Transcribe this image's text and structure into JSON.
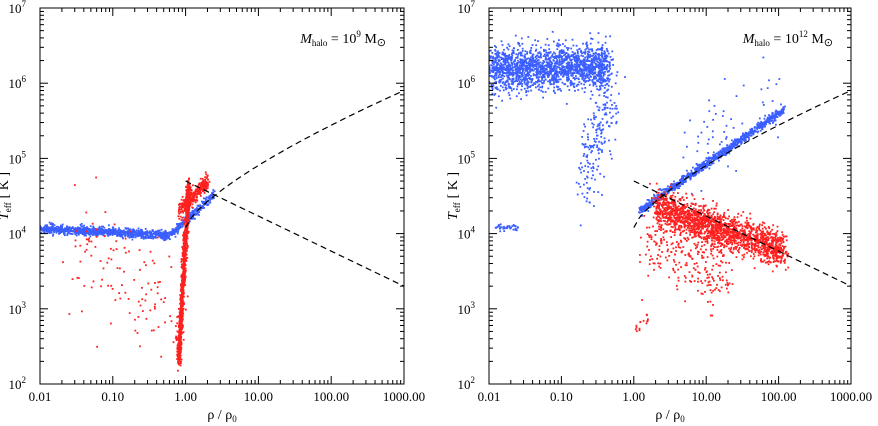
{
  "chart_data": [
    {
      "type": "scatter",
      "title": "",
      "annotation": {
        "symbol": "M",
        "subscript": "halo",
        "equals": " = 10",
        "exponent": "9",
        "unit": " M",
        "unit_symbol": "⊙"
      },
      "xlabel": {
        "main": "ρ / ρ",
        "sub": "0"
      },
      "ylabel": {
        "main": "T",
        "sub": "eff",
        "unit": "[ K ]"
      },
      "xscale": "log",
      "yscale": "log",
      "xlim": [
        0.01,
        1000
      ],
      "ylim": [
        100,
        10000000
      ],
      "x_ticks": [
        "0.01",
        "0.10",
        "1.00",
        "10.00",
        "100.00",
        "1000.00"
      ],
      "y_ticks": [
        "10",
        "10",
        "10",
        "10",
        "10",
        "10"
      ],
      "y_tick_exponents": [
        "2",
        "3",
        "4",
        "5",
        "6",
        "7"
      ],
      "colors": {
        "blue": "#3a5eff",
        "red": "#ff2020",
        "curve": "#000000"
      },
      "series": [
        {
          "color": "blue",
          "clouds": [
            {
              "x": [
                0.01,
                0.6
              ],
              "y": [
                11500,
                9500
              ],
              "spread": 0.03,
              "n": 900
            },
            {
              "x": [
                0.6,
                2.5
              ],
              "y": [
                9500,
                33000
              ],
              "spread": 0.03,
              "n": 250
            }
          ]
        },
        {
          "color": "red",
          "clouds": [
            {
              "x": [
                0.8,
                1.1
              ],
              "y": [
                200,
                45000
              ],
              "spread": 0.05,
              "n": 1100
            },
            {
              "x": [
                0.8,
                2.0
              ],
              "y": [
                20000,
                50000
              ],
              "spread": 0.05,
              "n": 300
            },
            {
              "x": [
                0.03,
                0.8
              ],
              "y": [
                8000,
                800
              ],
              "spread": 0.4,
              "n": 120
            }
          ]
        }
      ],
      "curves": [
        {
          "style": "dashed",
          "x": [
            1.0,
            1000
          ],
          "y": [
            50000,
            2000
          ]
        },
        {
          "style": "dashed",
          "x": [
            1.0,
            1000
          ],
          "y": [
            12000,
            800000
          ]
        }
      ]
    },
    {
      "type": "scatter",
      "title": "",
      "annotation": {
        "symbol": "M",
        "subscript": "halo",
        "equals": " = 10",
        "exponent": "12",
        "unit": " M",
        "unit_symbol": "⊙"
      },
      "xlabel": {
        "main": "ρ / ρ",
        "sub": "0"
      },
      "ylabel": {
        "main": "T",
        "sub": "eff",
        "unit": "[ K ]"
      },
      "xscale": "log",
      "yscale": "log",
      "xlim": [
        0.01,
        1000
      ],
      "ylim": [
        100,
        10000000
      ],
      "x_ticks": [
        "0.01",
        "0.10",
        "1.00",
        "10.00",
        "100.00",
        "1000.00"
      ],
      "y_ticks": [
        "10",
        "10",
        "10",
        "10",
        "10",
        "10"
      ],
      "y_tick_exponents": [
        "2",
        "3",
        "4",
        "5",
        "6",
        "7"
      ],
      "colors": {
        "blue": "#3a5eff",
        "red": "#ff2020",
        "curve": "#000000"
      },
      "series": [
        {
          "color": "blue",
          "clouds": [
            {
              "x": [
                0.01,
                0.45
              ],
              "y": [
                1500000,
                1700000
              ],
              "spread": 0.15,
              "n": 1800
            },
            {
              "x": [
                0.2,
                0.5
              ],
              "y": [
                50000,
                800000
              ],
              "spread": 0.3,
              "n": 200
            },
            {
              "x": [
                1.2,
                120
              ],
              "y": [
                20000,
                450000
              ],
              "spread": 0.03,
              "n": 900
            },
            {
              "x": [
                5,
                100
              ],
              "y": [
                150000,
                700000
              ],
              "spread": 0.25,
              "n": 60
            },
            {
              "x": [
                0.012,
                0.025
              ],
              "y": [
                12000,
                12000
              ],
              "spread": 0.02,
              "n": 40
            }
          ]
        },
        {
          "color": "red",
          "clouds": [
            {
              "x": [
                2,
                120
              ],
              "y": [
                22000,
                6000
              ],
              "spread": 0.12,
              "n": 1800
            },
            {
              "x": [
                1.5,
                20
              ],
              "y": [
                8000,
                2500
              ],
              "spread": 0.25,
              "n": 250
            },
            {
              "x": [
                1.0,
                1.6
              ],
              "y": [
                500,
                800
              ],
              "spread": 0.05,
              "n": 15
            }
          ]
        }
      ],
      "curves": [
        {
          "style": "dashed",
          "x": [
            1.0,
            1000
          ],
          "y": [
            50000,
            2000
          ]
        },
        {
          "style": "dashed",
          "x": [
            1.0,
            1000
          ],
          "y": [
            12000,
            800000
          ]
        }
      ]
    }
  ]
}
